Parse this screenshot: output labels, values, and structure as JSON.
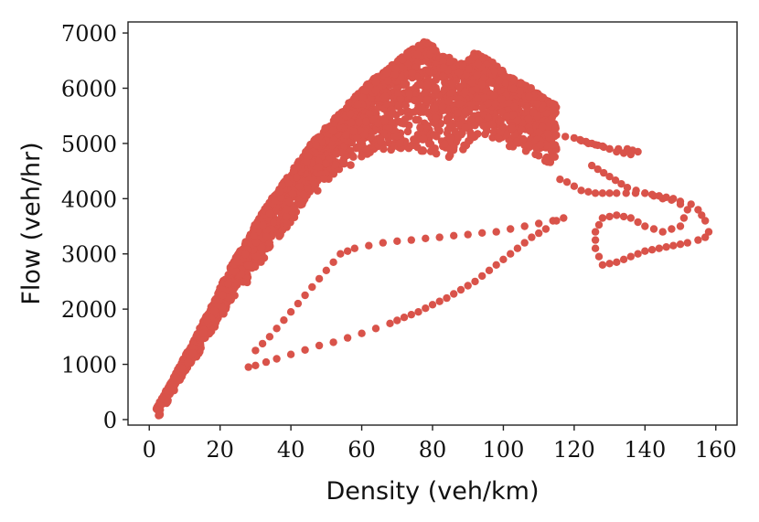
{
  "chart_data": {
    "type": "scatter",
    "title": "",
    "xlabel": "Density (veh/km)",
    "ylabel": "Flow (veh/hr)",
    "xlim": [
      -6,
      166
    ],
    "ylim": [
      -100,
      7200
    ],
    "xticks": [
      0,
      20,
      40,
      60,
      80,
      100,
      120,
      140,
      160
    ],
    "yticks": [
      0,
      1000,
      2000,
      3000,
      4000,
      5000,
      6000,
      7000
    ],
    "grid": false,
    "legend": "none",
    "marker_color": "#d9534a",
    "series": [
      {
        "dense_cloud_x": [
          2,
          4,
          6,
          8,
          10,
          12,
          15,
          18,
          20,
          22,
          25,
          28,
          30,
          33,
          35,
          38,
          40,
          43,
          45,
          48,
          50,
          53,
          55,
          58,
          60,
          62,
          65,
          68,
          70,
          72,
          75,
          78,
          80,
          82,
          85,
          88,
          90,
          92,
          95,
          98,
          100,
          102,
          105,
          108,
          110,
          112,
          115
        ],
        "dense_cloud_y_upper": [
          200,
          450,
          650,
          900,
          1150,
          1350,
          1750,
          2100,
          2400,
          2650,
          3000,
          3300,
          3550,
          3850,
          4050,
          4300,
          4500,
          4750,
          4950,
          5150,
          5300,
          5500,
          5650,
          5850,
          5950,
          6100,
          6250,
          6400,
          6500,
          6600,
          6750,
          6850,
          6800,
          6600,
          6550,
          6450,
          6500,
          6650,
          6550,
          6450,
          6300,
          6200,
          6100,
          6000,
          5900,
          5800,
          5700
        ],
        "dense_cloud_y_lower": [
          180,
          300,
          480,
          650,
          850,
          1000,
          1300,
          1600,
          1800,
          2000,
          2300,
          2500,
          2700,
          2950,
          3150,
          3400,
          3550,
          3800,
          4000,
          4150,
          4250,
          4400,
          4500,
          4650,
          4700,
          4800,
          4850,
          4850,
          4900,
          4900,
          4850,
          4800,
          4700,
          4700,
          4750,
          4800,
          4850,
          5000,
          5050,
          5000,
          4950,
          4900,
          4850,
          4800,
          4750,
          4650,
          4600
        ],
        "loop_lower_x": [
          28,
          30,
          33,
          36,
          40,
          44,
          48,
          52,
          56,
          60,
          64,
          68,
          72,
          76,
          80,
          84,
          88,
          92,
          96,
          100,
          104,
          108,
          112,
          115,
          117
        ],
        "loop_lower_y": [
          950,
          980,
          1040,
          1100,
          1180,
          1260,
          1340,
          1400,
          1480,
          1560,
          1650,
          1740,
          1850,
          1950,
          2080,
          2200,
          2350,
          2500,
          2700,
          2900,
          3100,
          3300,
          3450,
          3600,
          3650
        ],
        "loop_upper_x": [
          117,
          114,
          110,
          106,
          102,
          98,
          94,
          90,
          86,
          82,
          78,
          74,
          70,
          66,
          62,
          58,
          54,
          50,
          46,
          42,
          38,
          34,
          30,
          28
        ],
        "loop_upper_y": [
          3650,
          3600,
          3550,
          3500,
          3450,
          3400,
          3380,
          3350,
          3330,
          3300,
          3280,
          3250,
          3230,
          3200,
          3150,
          3100,
          3000,
          2700,
          2400,
          2100,
          1800,
          1500,
          1250,
          1100
        ],
        "excursion_x": [
          125,
          130,
          135,
          140,
          145,
          150,
          153,
          155,
          157,
          158,
          157,
          155,
          152,
          148,
          144,
          140,
          136,
          132,
          128,
          126,
          126,
          128,
          132,
          136,
          140,
          145,
          150,
          152,
          148,
          140,
          132,
          126,
          122,
          118,
          114
        ],
        "excursion_y": [
          4600,
          4400,
          4200,
          4100,
          4000,
          3950,
          3900,
          3800,
          3600,
          3400,
          3300,
          3250,
          3200,
          3150,
          3100,
          3050,
          2950,
          2850,
          2800,
          3100,
          3400,
          3650,
          3700,
          3650,
          3500,
          3400,
          3500,
          3800,
          4000,
          4100,
          4100,
          4100,
          4150,
          4300,
          4400
        ],
        "upper_right_x": [
          100,
          105,
          110,
          115,
          120,
          125,
          130,
          135,
          138,
          136,
          132,
          128,
          124,
          120
        ],
        "upper_right_y": [
          5300,
          5250,
          5200,
          5150,
          5100,
          5000,
          4900,
          4900,
          4850,
          4800,
          4850,
          4950,
          5000,
          5100
        ]
      }
    ]
  }
}
